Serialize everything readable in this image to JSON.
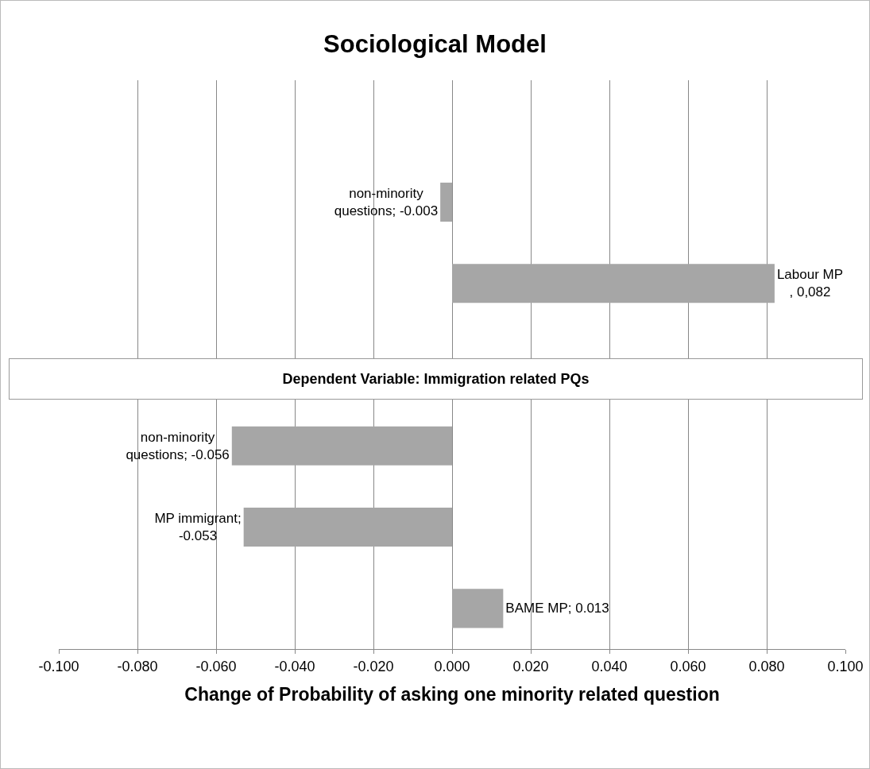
{
  "chart_data": {
    "type": "bar",
    "orientation": "horizontal",
    "title": "Sociological Model",
    "xlabel": "Change of Probability of asking one minority related question",
    "categories": [
      null,
      null,
      null,
      null,
      null,
      null,
      null
    ],
    "values": [
      null,
      -0.003,
      0.082,
      null,
      -0.056,
      -0.053,
      0.013
    ],
    "value_labels": [
      null,
      "non-minority questions; -0.003",
      "Labour MP , 0,082",
      null,
      "non-minority questions; -0.056",
      "MP immigrant; -0.053",
      "BAME MP; 0.013"
    ],
    "color": "#a6a6a6",
    "xlim": [
      -0.1,
      0.1
    ],
    "xticks": [
      {
        "value": -0.1,
        "label": "-0.100"
      },
      {
        "value": -0.08,
        "label": "-0.080"
      },
      {
        "value": -0.06,
        "label": "-0.060"
      },
      {
        "value": -0.04,
        "label": "-0.040"
      },
      {
        "value": -0.02,
        "label": "-0.020"
      },
      {
        "value": 0,
        "label": "0.000"
      },
      {
        "value": 0.02,
        "label": "0.020"
      },
      {
        "value": 0.04,
        "label": "0.040"
      },
      {
        "value": 0.06,
        "label": "0.060"
      },
      {
        "value": 0.08,
        "label": "0.080"
      },
      {
        "value": 0.1,
        "label": "0.100"
      }
    ],
    "grid": "x",
    "tick_labels": "x",
    "annotations": [
      "Dependent Variable: Immigration related PQs"
    ]
  }
}
